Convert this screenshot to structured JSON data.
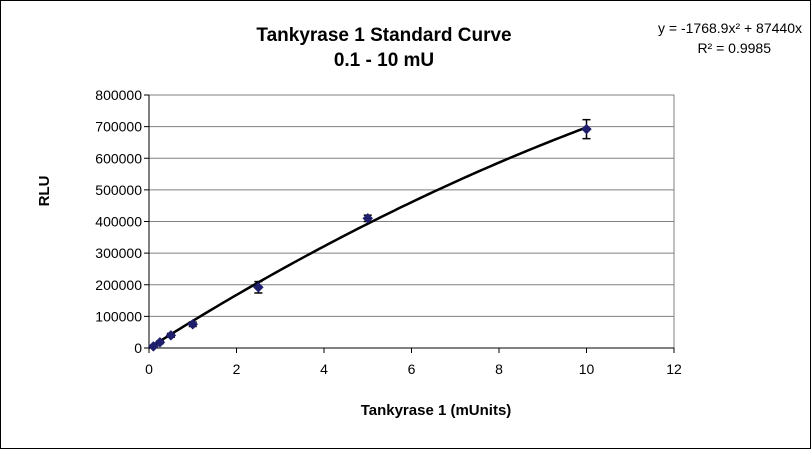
{
  "chart_data": {
    "type": "scatter",
    "title": "Tankyrase 1 Standard Curve",
    "subtitle": "0.1 - 10 mU",
    "xlabel": "Tankyrase 1 (mUnits)",
    "ylabel": "RLU",
    "xlim": [
      0,
      12
    ],
    "ylim": [
      0,
      800000
    ],
    "x_ticks": [
      0,
      2,
      4,
      6,
      8,
      10,
      12
    ],
    "y_ticks": [
      0,
      100000,
      200000,
      300000,
      400000,
      500000,
      600000,
      700000,
      800000
    ],
    "grid": {
      "horizontal": true,
      "vertical": false
    },
    "colors": {
      "points": "#1f1f6e",
      "trendline": "#000000",
      "gridlines": "#808080"
    },
    "points": [
      {
        "x": 0.1,
        "y": 5000,
        "err": 3000
      },
      {
        "x": 0.25,
        "y": 18000,
        "err": 4000
      },
      {
        "x": 0.5,
        "y": 40000,
        "err": 6000
      },
      {
        "x": 1,
        "y": 75000,
        "err": 7000
      },
      {
        "x": 2.5,
        "y": 192000,
        "err": 18000
      },
      {
        "x": 5,
        "y": 410000,
        "err": 10000
      },
      {
        "x": 10,
        "y": 692000,
        "err": 30000
      }
    ],
    "trendline": {
      "type": "polynomial",
      "a2": -1768.9,
      "a1": 87440,
      "equation": "y = -1768.9x² + 87440x",
      "r_squared": "R² = 0.9985"
    }
  }
}
